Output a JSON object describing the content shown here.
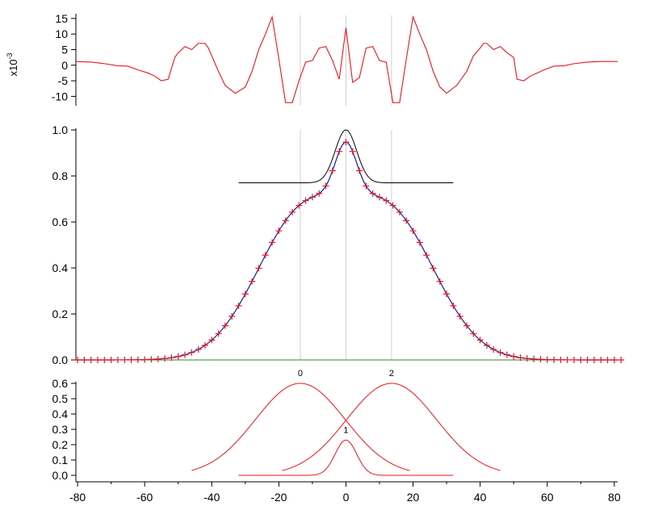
{
  "colors": {
    "residual": "#e8161c",
    "markers": "#e8161c",
    "fit": "#1a1aa8",
    "baseline": "#2e8b2e",
    "peak_sum": "#000000",
    "components": "#e8161c",
    "guide": "#cfcfcf",
    "axis": "#000000"
  },
  "chart_data": [
    {
      "id": "residual",
      "type": "line",
      "ylabel": "x10",
      "ylabel_exp": "-3",
      "xlim": [
        -80.5,
        81
      ],
      "ylim": [
        -13,
        16
      ],
      "yticks": [
        15,
        10,
        5,
        0,
        -5,
        -10
      ],
      "series": [
        {
          "x": [
            -80.5,
            -76,
            -72,
            -68,
            -65,
            -62,
            -59,
            -57,
            -55,
            -53,
            -51,
            -50,
            -48,
            -46,
            -44,
            -42,
            -41,
            -40,
            -38,
            -36,
            -33,
            -30,
            -28,
            -26,
            -24,
            -22,
            -20,
            -18,
            -16,
            -14,
            -12,
            -10,
            -8,
            -6,
            -4,
            -2,
            0,
            2,
            4,
            6,
            8,
            10,
            12,
            14,
            16,
            18,
            20,
            22,
            24,
            26,
            28,
            30,
            33,
            36,
            38,
            40,
            41,
            42,
            44,
            46,
            48,
            50,
            51,
            53,
            55,
            57,
            59,
            62,
            65,
            68,
            72,
            76,
            81
          ],
          "y": [
            1.2,
            1.0,
            0.5,
            -0.2,
            -0.3,
            -1.5,
            -2.5,
            -3.5,
            -5.0,
            -4.5,
            2.5,
            4.0,
            6.0,
            5.0,
            7.0,
            7.0,
            5.5,
            3.0,
            -2.0,
            -6.5,
            -9.0,
            -7.0,
            -2.0,
            5.0,
            10.0,
            15.5,
            2.0,
            -12.0,
            -12.0,
            -5.0,
            1.0,
            1.5,
            5.5,
            6.0,
            1.5,
            -4.5,
            12.0,
            -5.5,
            -4.0,
            5.5,
            6.0,
            1.5,
            1.0,
            -12.0,
            -12.0,
            2.0,
            15.5,
            10.0,
            5.0,
            -2.0,
            -7.0,
            -9.0,
            -6.5,
            -2.0,
            3.0,
            5.5,
            7.0,
            7.0,
            5.0,
            6.0,
            4.0,
            2.5,
            -4.5,
            -5.0,
            -3.5,
            -2.5,
            -1.5,
            -0.3,
            -0.2,
            0.5,
            1.0,
            1.2,
            1.2
          ]
        }
      ]
    },
    {
      "id": "main",
      "type": "line",
      "xlim": [
        -80.5,
        81
      ],
      "ylim": [
        0,
        1.0
      ],
      "yticks": [
        0.0,
        0.2,
        0.4,
        0.6,
        0.8,
        1.0
      ],
      "data_markers": {
        "x_min": -80,
        "x_max": 82,
        "dx": 2,
        "model": "0.6*exp(-(x+13.6)^2/(2*13.4^2)) + 0.6*exp(-(x-13.6)^2/(2*13.4^2)) + 0.23*exp(-x^2/(2*3.2^2))"
      },
      "components": [
        {
          "label": "0",
          "center": -13.6,
          "amplitude": 0.6,
          "sigma": 13.4,
          "x_range": [
            -46,
            19
          ]
        },
        {
          "label": "1",
          "center": 0,
          "amplitude": 0.23,
          "sigma": 3.2,
          "x_range": [
            -32,
            32
          ]
        },
        {
          "label": "2",
          "center": 13.6,
          "amplitude": 0.6,
          "sigma": 13.4,
          "x_range": [
            -19,
            46
          ]
        }
      ],
      "peak_sum": {
        "offset": 0.77,
        "x_range": [
          -32,
          32
        ]
      },
      "baseline": 0.0,
      "guides_x": [
        -13.6,
        0,
        13.6
      ]
    },
    {
      "id": "components",
      "type": "line",
      "xlim": [
        -80.5,
        81
      ],
      "ylim": [
        0,
        0.6
      ],
      "yticks": [
        0.6,
        0.5,
        0.4,
        0.3,
        0.2,
        0.1,
        0.0
      ],
      "xticks": [
        -80,
        -60,
        -40,
        -20,
        0,
        20,
        40,
        60,
        80
      ],
      "peak_labels": [
        "0",
        "1",
        "2"
      ]
    }
  ]
}
